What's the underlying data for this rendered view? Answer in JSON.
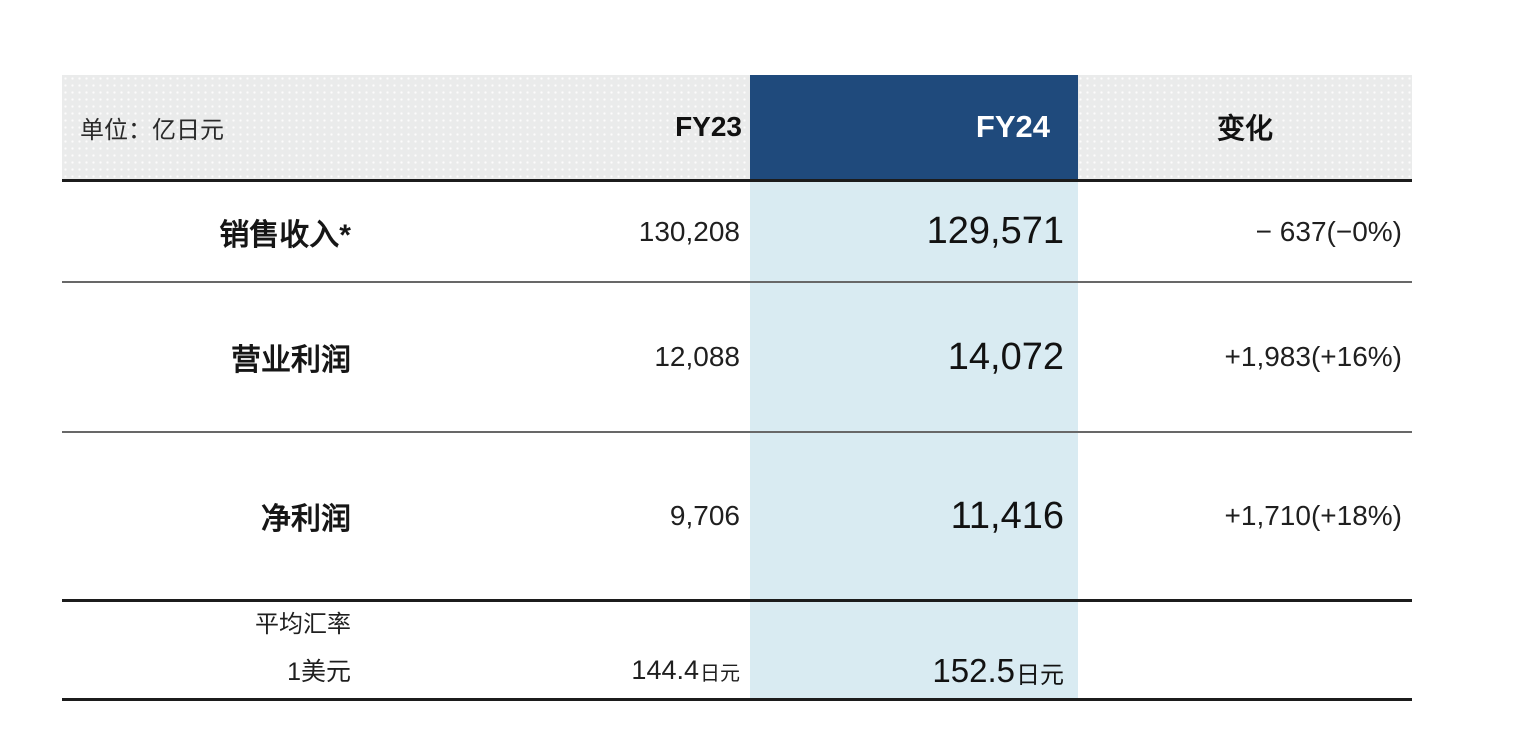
{
  "table": {
    "unit_label": "单位：亿日元",
    "header": {
      "fy23": "FY23",
      "fy24": "FY24",
      "change": "变化"
    },
    "rows": [
      {
        "label": "销售收入*",
        "fy23": "130,208",
        "fy24": "129,571",
        "change": "− 637(−0%)"
      },
      {
        "label": "营业利润",
        "fy23": "12,088",
        "fy24": "14,072",
        "change": "+1,983(+16%)"
      },
      {
        "label": "净利润",
        "fy23": "9,706",
        "fy24": "11,416",
        "change": "+1,710(+18%)"
      }
    ],
    "footer": {
      "label_line1": "平均汇率",
      "label_line2": "1美元",
      "fy23_value": "144.4",
      "fy23_unit": "日元",
      "fy24_value": "152.5",
      "fy24_unit": "日元"
    },
    "colors": {
      "fy24_header_navy": "#1F4A7C",
      "fy24_column_light_blue": "#D9EBF2",
      "header_band_gray": "#EAEBEB",
      "thick_rule": "#1C1C1C",
      "thin_rule": "#686868"
    }
  },
  "chart_data": {
    "type": "table",
    "unit": "单位：亿日元",
    "columns": [
      "",
      "FY23",
      "FY24",
      "变化"
    ],
    "highlighted_column": "FY24",
    "rows": [
      {
        "label": "销售收入*",
        "FY23": 130208,
        "FY24": 129571,
        "change_abs": -637,
        "change_pct": "-0%"
      },
      {
        "label": "营业利润",
        "FY23": 12088,
        "FY24": 14072,
        "change_abs": 1983,
        "change_pct": "+16%"
      },
      {
        "label": "净利润",
        "FY23": 9706,
        "FY24": 11416,
        "change_abs": 1710,
        "change_pct": "+18%"
      }
    ],
    "exchange_rate": {
      "label": "平均汇率 1美元",
      "FY23": "144.4日元",
      "FY24": "152.5日元"
    }
  }
}
